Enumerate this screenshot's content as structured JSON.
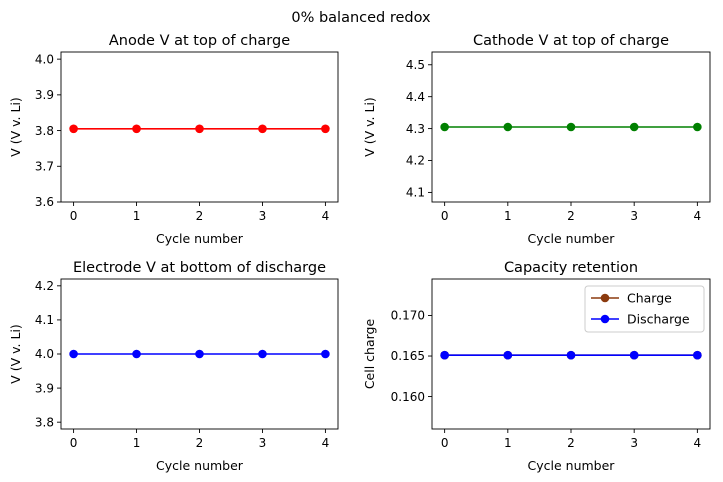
{
  "figure": {
    "suptitle": "0% balanced redox"
  },
  "chart_data": [
    {
      "type": "line",
      "title": "Anode V at top of charge",
      "xlabel": "Cycle number",
      "ylabel": "V (V v. Li)",
      "x": [
        0,
        1,
        2,
        3,
        4
      ],
      "xlim": [
        -0.2,
        4.2
      ],
      "ylim": [
        3.6,
        4.02
      ],
      "xticks": [
        0,
        1,
        2,
        3,
        4
      ],
      "yticks": [
        3.6,
        3.7,
        3.8,
        3.9,
        4.0
      ],
      "ytick_decimals": 1,
      "series": [
        {
          "name": "",
          "color": "#ff0000",
          "marker": "circle",
          "values": [
            3.805,
            3.805,
            3.805,
            3.805,
            3.805
          ]
        }
      ],
      "legend": null
    },
    {
      "type": "line",
      "title": "Cathode V at top of charge",
      "xlabel": "Cycle number",
      "ylabel": "V (V v. Li)",
      "x": [
        0,
        1,
        2,
        3,
        4
      ],
      "xlim": [
        -0.2,
        4.2
      ],
      "ylim": [
        4.07,
        4.54
      ],
      "xticks": [
        0,
        1,
        2,
        3,
        4
      ],
      "yticks": [
        4.1,
        4.2,
        4.3,
        4.4,
        4.5
      ],
      "ytick_decimals": 1,
      "series": [
        {
          "name": "",
          "color": "#008000",
          "marker": "circle",
          "values": [
            4.305,
            4.305,
            4.305,
            4.305,
            4.305
          ]
        }
      ],
      "legend": null
    },
    {
      "type": "line",
      "title": "Electrode V at bottom of discharge",
      "xlabel": "Cycle number",
      "ylabel": "V (V v. Li)",
      "x": [
        0,
        1,
        2,
        3,
        4
      ],
      "xlim": [
        -0.2,
        4.2
      ],
      "ylim": [
        3.78,
        4.22
      ],
      "xticks": [
        0,
        1,
        2,
        3,
        4
      ],
      "yticks": [
        3.8,
        3.9,
        4.0,
        4.1,
        4.2
      ],
      "ytick_decimals": 1,
      "series": [
        {
          "name": "",
          "color": "#0000ff",
          "marker": "circle",
          "values": [
            4.0,
            4.0,
            4.0,
            4.0,
            4.0
          ]
        }
      ],
      "legend": null
    },
    {
      "type": "line",
      "title": "Capacity retention",
      "xlabel": "Cycle number",
      "ylabel": "Cell charge",
      "x": [
        0,
        1,
        2,
        3,
        4
      ],
      "xlim": [
        -0.2,
        4.2
      ],
      "ylim": [
        0.156,
        0.1745
      ],
      "xticks": [
        0,
        1,
        2,
        3,
        4
      ],
      "yticks": [
        0.16,
        0.165,
        0.17
      ],
      "ytick_decimals": 3,
      "series": [
        {
          "name": "Charge",
          "color": "#8b3a0e",
          "marker": "circle",
          "values": [
            0.1651,
            0.1651,
            0.1651,
            0.1651,
            0.1651
          ]
        },
        {
          "name": "Discharge",
          "color": "#0000ff",
          "marker": "circle",
          "values": [
            0.1651,
            0.1651,
            0.1651,
            0.1651,
            0.1651
          ]
        }
      ],
      "legend": "top-right"
    }
  ]
}
